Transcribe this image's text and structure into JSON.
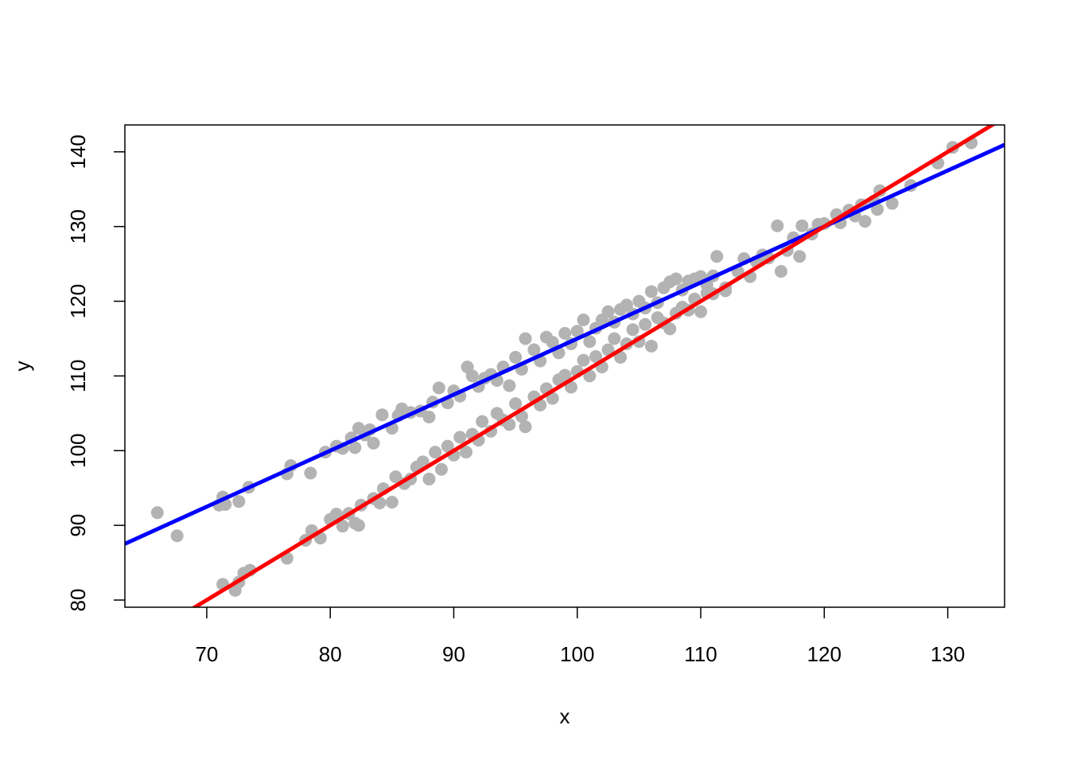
{
  "chart_data": {
    "type": "scatter",
    "xlabel": "x",
    "ylabel": "y",
    "xlim": [
      63.37,
      134.6
    ],
    "ylim": [
      79.04,
      143.6
    ],
    "xticks": [
      70,
      80,
      90,
      100,
      110,
      120,
      130
    ],
    "yticks": [
      80,
      90,
      100,
      110,
      120,
      130,
      140
    ],
    "point_color": "#b3b3b3",
    "x": [
      66,
      67.6,
      71,
      71.3,
      71.5,
      72.6,
      73.4,
      76.5,
      76.8,
      78.4,
      79.6,
      80.5,
      81,
      81.7,
      82,
      82.3,
      82.8,
      83.2,
      83.5,
      84.2,
      85,
      85.5,
      85.8,
      86.5,
      87.3,
      88,
      88.3,
      88.8,
      89.5,
      90,
      90.5,
      91.1,
      91.5,
      92,
      92.5,
      93,
      93.5,
      94,
      94.5,
      95,
      95.5,
      95.8,
      96.5,
      97,
      97.5,
      98,
      98.5,
      99,
      99.5,
      100,
      100.5,
      101,
      101.5,
      102,
      102.5,
      103,
      103.5,
      104,
      104.5,
      105,
      105.5,
      106,
      106.5,
      107,
      107.5,
      108,
      108.5,
      109,
      109.5,
      110,
      110.5,
      111,
      111.3,
      112,
      113,
      113.5,
      114,
      114.5,
      115,
      115.5,
      116.2,
      116.5,
      117,
      117.5,
      118,
      118.2,
      119,
      119.5,
      120,
      121,
      121.3,
      122,
      122.5,
      123,
      123.3,
      124,
      124.3,
      124.5,
      125.5,
      127,
      129.2,
      130.4,
      131.9,
      71.3,
      72.3,
      72.6,
      73,
      73.5,
      76.5,
      78,
      78.5,
      79.2,
      80,
      80.5,
      81,
      81.5,
      82,
      82.3,
      82.5,
      83.5,
      84,
      84.3,
      85,
      85.3,
      86,
      86.5,
      87,
      87.5,
      88,
      88.5,
      89,
      89.5,
      90,
      90.5,
      91,
      91.5,
      92,
      92.3,
      93,
      93.5,
      94,
      94.5,
      95,
      95.5,
      95.8,
      96.5,
      97,
      97.5,
      98,
      98.5,
      99,
      99.5,
      100,
      100.5,
      101,
      101.5,
      102,
      102.5,
      103,
      103.5,
      104,
      104.5,
      105,
      105.5,
      106,
      106.5,
      107,
      107.5,
      108,
      108.5,
      109,
      109.5,
      110,
      110.5,
      111,
      112
    ],
    "y": [
      91.7,
      88.6,
      92.7,
      93.8,
      92.8,
      93.2,
      95.1,
      96.9,
      98,
      97,
      99.8,
      100.6,
      100.3,
      101.7,
      100.4,
      103,
      102.1,
      102.8,
      101,
      104.8,
      103,
      104.7,
      105.6,
      105.1,
      105.3,
      104.5,
      106.5,
      108.4,
      106.4,
      108,
      107.3,
      111.2,
      110,
      108.6,
      109.7,
      110.2,
      109.4,
      111.2,
      108.7,
      112.5,
      110.9,
      115,
      113.5,
      112,
      115.2,
      114.5,
      113.1,
      115.7,
      114.3,
      116,
      117.5,
      114.6,
      116.4,
      117.5,
      118.6,
      117.2,
      118.9,
      119.5,
      118.3,
      120,
      119.1,
      121.3,
      119.8,
      121.8,
      122.6,
      123,
      121.5,
      122.7,
      123,
      123.3,
      122.2,
      123.4,
      126,
      121.4,
      124,
      125.7,
      123.3,
      125.3,
      126.2,
      125.8,
      130.1,
      124,
      126.8,
      128.5,
      126,
      130.1,
      129,
      130.3,
      130.4,
      131.6,
      130.5,
      132.2,
      131.4,
      132.9,
      130.7,
      133.4,
      132.3,
      134.8,
      133.1,
      135.5,
      138.5,
      140.6,
      141.2,
      82.1,
      81.3,
      82.4,
      83.6,
      84,
      85.6,
      88,
      89.3,
      88.3,
      90.8,
      91.5,
      89.9,
      91.6,
      90.3,
      90,
      92.7,
      93.6,
      93,
      94.9,
      93.1,
      96.5,
      95.6,
      96.2,
      97.8,
      98.5,
      96.2,
      99.8,
      97.5,
      100.6,
      99.4,
      101.8,
      99.8,
      102.2,
      101.4,
      103.9,
      102.6,
      105,
      104.1,
      103.5,
      106.3,
      104.6,
      103.2,
      107.2,
      106.1,
      108.3,
      107,
      109.5,
      110.1,
      108.5,
      110.6,
      112.1,
      110,
      112.6,
      111.2,
      113.5,
      115,
      112.5,
      114.3,
      116.2,
      114.6,
      116.9,
      114,
      117.8,
      117.1,
      116.3,
      118.4,
      119.2,
      118.8,
      120.3,
      118.6,
      121.1,
      121,
      121.8
    ],
    "lines": [
      {
        "intercept": 40,
        "slope": 0.75,
        "color": "#0000ff"
      },
      {
        "intercept": 10,
        "slope": 1,
        "color": "#ff0000"
      }
    ]
  }
}
